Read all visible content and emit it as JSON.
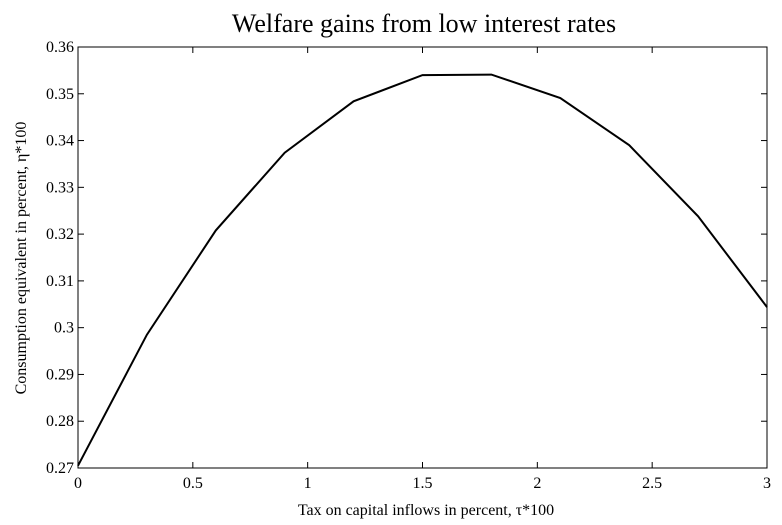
{
  "chart_data": {
    "type": "line",
    "title": "Welfare gains from low interest rates",
    "xlabel": "Tax on capital inflows in percent, τ*100",
    "ylabel": "Consumption equivalent in percent, η*100",
    "xlim": [
      0,
      3
    ],
    "ylim": [
      0.27,
      0.36
    ],
    "x_ticks": [
      0,
      0.5,
      1,
      1.5,
      2,
      2.5,
      3
    ],
    "x_tick_labels": [
      "0",
      "0.5",
      "1",
      "1.5",
      "2",
      "2.5",
      "3"
    ],
    "y_ticks": [
      0.27,
      0.28,
      0.29,
      0.3,
      0.31,
      0.32,
      0.33,
      0.34,
      0.35,
      0.36
    ],
    "y_tick_labels": [
      "0.27",
      "0.28",
      "0.29",
      "0.3",
      "0.31",
      "0.32",
      "0.33",
      "0.34",
      "0.35",
      "0.36"
    ],
    "grid": false,
    "line_color": "#000000",
    "series": [
      {
        "x": [
          0,
          0.3,
          0.6,
          0.9,
          1.2,
          1.5,
          1.8,
          2.1,
          2.4,
          2.7,
          3.0
        ],
        "y": [
          0.2705,
          0.2985,
          0.3208,
          0.3374,
          0.3484,
          0.354,
          0.3541,
          0.3491,
          0.339,
          0.3238,
          0.3044
        ]
      }
    ]
  }
}
